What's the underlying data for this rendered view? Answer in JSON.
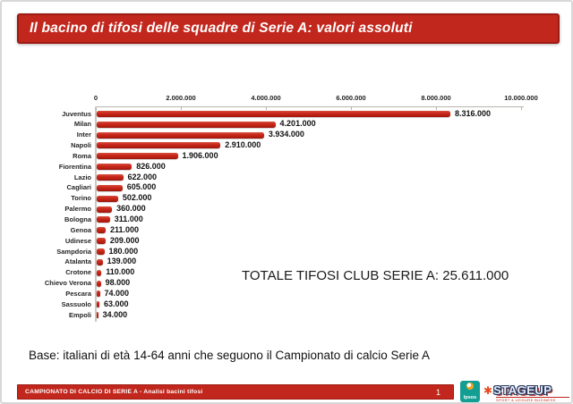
{
  "title_banner": {
    "text": "Il bacino di tifosi delle squadre di Serie A: valori assoluti"
  },
  "chart_data": {
    "type": "bar",
    "orientation": "horizontal",
    "title": "",
    "xlabel": "",
    "ylabel": "",
    "xlim": [
      0,
      10000000
    ],
    "x_ticks": [
      0,
      2000000,
      4000000,
      6000000,
      8000000,
      10000000
    ],
    "x_tick_labels": [
      "0",
      "2.000.000",
      "4.000.000",
      "6.000.000",
      "8.000.000",
      "10.000.000"
    ],
    "grid": false,
    "legend": false,
    "bar_color": "#c0261c",
    "categories": [
      "Juventus",
      "Milan",
      "Inter",
      "Napoli",
      "Roma",
      "Fiorentina",
      "Lazio",
      "Cagliari",
      "Torino",
      "Palermo",
      "Bologna",
      "Genoa",
      "Udinese",
      "Sampdoria",
      "Atalanta",
      "Crotone",
      "Chievo Verona",
      "Pescara",
      "Sassuolo",
      "Empoli"
    ],
    "values": [
      8316000,
      4201000,
      3934000,
      2910000,
      1906000,
      826000,
      622000,
      605000,
      502000,
      360000,
      311000,
      211000,
      209000,
      180000,
      139000,
      110000,
      98000,
      74000,
      63000,
      34000
    ],
    "value_labels": [
      "8.316.000",
      "4.201.000",
      "3.934.000",
      "2.910.000",
      "1.906.000",
      "826.000",
      "622.000",
      "605.000",
      "502.000",
      "360.000",
      "311.000",
      "211.000",
      "209.000",
      "180.000",
      "139.000",
      "110.000",
      "98.000",
      "74.000",
      "63.000",
      "34.000"
    ],
    "annotation": "TOTALE TIFOSI CLUB SERIE A: 25.611.000"
  },
  "total_annotation": "TOTALE TIFOSI CLUB SERIE A: 25.611.000",
  "base_note": "Base: italiani di età 14-64 anni che seguono il Campionato di calcio Serie A",
  "footer": {
    "left_text": "CAMPIONATO DI CALCIO DI SERIE A - Analisi bacini tifosi",
    "page_number": "1",
    "ipsos_logo_text": "Ipsos",
    "stageup_star": "✱",
    "stageup_text": "STAGEUP",
    "stageup_tagline": "SPORT & LEISURE BUSINESS"
  }
}
